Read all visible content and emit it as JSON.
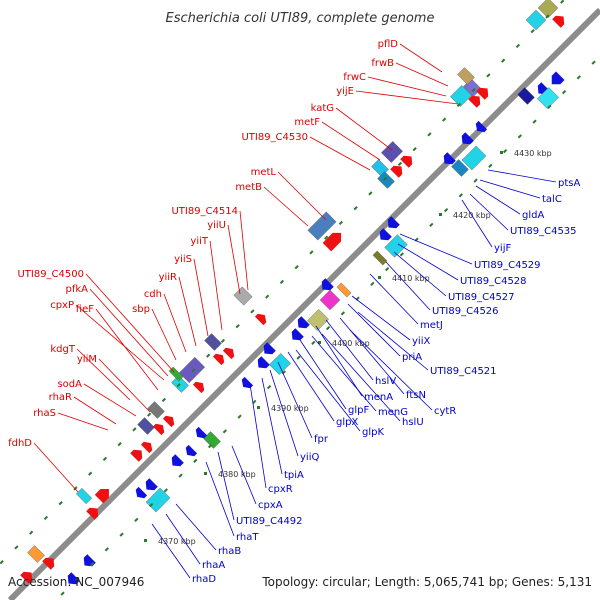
{
  "title": "Escherichia coli UTI89, complete genome",
  "footer": {
    "accession": "Accession: NC_007946",
    "topology": "Topology: circular; Length: 5,065,741 bp; Genes: 5,131"
  },
  "colors": {
    "forward_label": "#dd0000",
    "reverse_label": "#0000cc",
    "backbone": "#8c8c8c",
    "forward_arrow": "#ee1111",
    "reverse_arrow": "#1111dd",
    "tick": "#2a7a2a"
  },
  "kbp_markers": [
    "4370 kbp",
    "4380 kbp",
    "4390 kbp",
    "4400 kbp",
    "4410 kbp",
    "4420 kbp",
    "4430 kbp"
  ],
  "forward_genes": [
    "pflD",
    "frwB",
    "frwC",
    "yijE",
    "katG",
    "metF",
    "UTI89_C4530",
    "metL",
    "metB",
    "UTI89_C4514",
    "yiiU",
    "yiiT",
    "yiiS",
    "yiiR",
    "cdh",
    "sbp",
    "UTI89_C4500",
    "pfkA",
    "cpxP",
    "fieF",
    "kdgT",
    "yiiM",
    "sodA",
    "rhaR",
    "rhaS",
    "fdhD"
  ],
  "reverse_genes": [
    "ptsA",
    "talC",
    "gldA",
    "UTI89_C4535",
    "yijF",
    "UTI89_C4529",
    "UTI89_C4528",
    "UTI89_C4527",
    "UTI89_C4526",
    "metJ",
    "yiiX",
    "priA",
    "UTI89_C4521",
    "ftsN",
    "cytR",
    "hslV",
    "menA",
    "menG",
    "hslU",
    "glpF",
    "glpK",
    "glpX",
    "fpr",
    "yiiQ",
    "tpiA",
    "cpxR",
    "cpxA",
    "UTI89_C4492",
    "rhaT",
    "rhaB",
    "rhaA",
    "rhaD"
  ]
}
